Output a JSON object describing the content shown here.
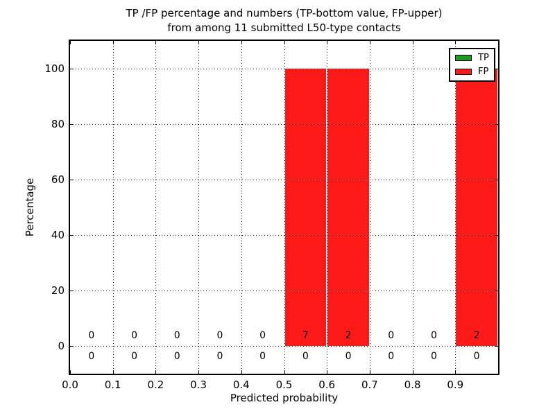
{
  "title": {
    "line1": "TP /FP percentage and numbers (TP-bottom value, FP-upper)",
    "line2": "from among 11 submitted L50-type contacts"
  },
  "chart_data": {
    "type": "bar",
    "title": "TP /FP percentage and numbers (TP-bottom value, FP-upper) from among 11 submitted L50-type contacts",
    "xlabel": "Predicted probability",
    "ylabel": "Percentage",
    "xlim": [
      0.0,
      1.0
    ],
    "ylim": [
      -10,
      110
    ],
    "grid": "dotted",
    "legend_position": "upper right",
    "x_ticks": {
      "values": [
        0.0,
        0.1,
        0.2,
        0.3,
        0.4,
        0.5,
        0.6,
        0.7,
        0.8,
        0.9
      ],
      "labels": [
        "0.0",
        "0.1",
        "0.2",
        "0.3",
        "0.4",
        "0.5",
        "0.6",
        "0.7",
        "0.8",
        "0.9"
      ]
    },
    "y_ticks": {
      "values": [
        0,
        20,
        40,
        60,
        80,
        100
      ],
      "labels": [
        "0",
        "20",
        "40",
        "60",
        "80",
        "100"
      ]
    },
    "bin_edges": [
      0.0,
      0.1,
      0.2,
      0.3,
      0.4,
      0.5,
      0.6,
      0.7,
      0.8,
      0.9,
      1.0
    ],
    "series": [
      {
        "name": "TP",
        "color": "#1e9c1e",
        "stack_role": "bottom",
        "count_label_row": "below-zero",
        "percentages": [
          0,
          0,
          0,
          0,
          0,
          0,
          0,
          0,
          0,
          0
        ],
        "counts": [
          0,
          0,
          0,
          0,
          0,
          0,
          0,
          0,
          0,
          0
        ]
      },
      {
        "name": "FP",
        "color": "#ff1a1a",
        "stack_role": "upper",
        "count_label_row": "above-zero",
        "percentages": [
          0,
          0,
          0,
          0,
          0,
          100,
          100,
          0,
          0,
          100
        ],
        "counts": [
          0,
          0,
          0,
          0,
          0,
          7,
          2,
          0,
          0,
          2
        ]
      }
    ],
    "total_contacts": "11"
  },
  "legend": {
    "items": [
      {
        "label": "TP",
        "color": "#1e9c1e"
      },
      {
        "label": "FP",
        "color": "#ff1a1a"
      }
    ]
  }
}
